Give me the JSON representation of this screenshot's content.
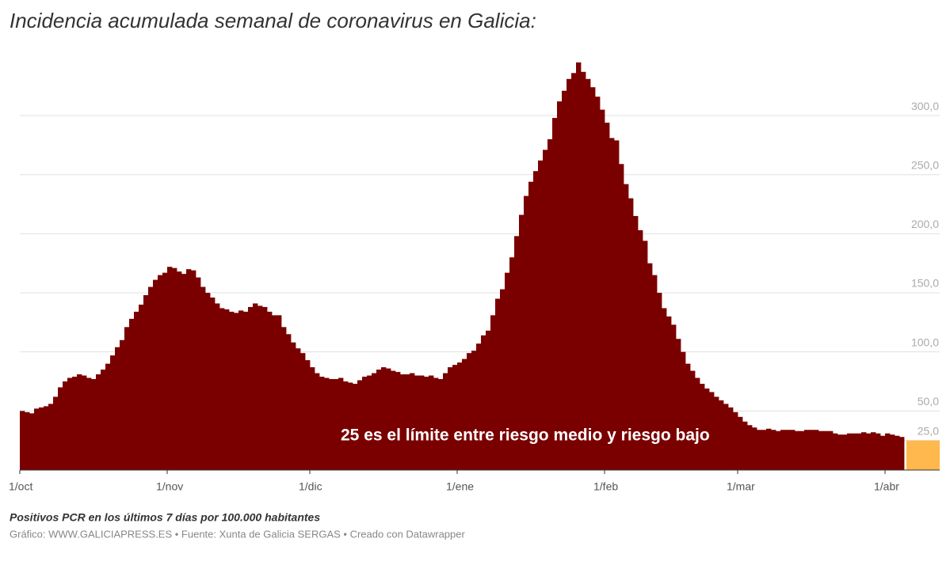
{
  "chart_data": {
    "type": "bar",
    "title": "Incidencia acumulada semanal de coronavirus en Galicia:",
    "note": "Positivos PCR en los últimos 7 días por 100.000 habitantes",
    "source": "Gráfico: WWW.GALICIAPRESS.ES • Fuente: Xunta de Galicia SERGAS • Creado con Datawrapper",
    "annotation": "25 es el límite entre riesgo medio y riesgo bajo",
    "color": "#7a0000",
    "highlight": {
      "value": 25,
      "color": "#ffb84d"
    },
    "ylim": [
      0,
      350
    ],
    "yticks": [
      {
        "value": 25,
        "label": "25,0"
      },
      {
        "value": 50,
        "label": "50,0"
      },
      {
        "value": 100,
        "label": "100,0"
      },
      {
        "value": 150,
        "label": "150,0"
      },
      {
        "value": 200,
        "label": "200,0"
      },
      {
        "value": 250,
        "label": "250,0"
      },
      {
        "value": 300,
        "label": "300,0"
      }
    ],
    "grid": true,
    "categories": [
      "1/oct",
      null,
      null,
      null,
      null,
      null,
      null,
      null,
      null,
      null,
      null,
      null,
      null,
      null,
      null,
      null,
      null,
      null,
      null,
      null,
      null,
      null,
      null,
      null,
      null,
      null,
      null,
      null,
      null,
      null,
      null,
      "1/nov",
      null,
      null,
      null,
      null,
      null,
      null,
      null,
      null,
      null,
      null,
      null,
      null,
      null,
      null,
      null,
      null,
      null,
      null,
      null,
      null,
      null,
      null,
      null,
      null,
      null,
      null,
      null,
      null,
      null,
      "1/dic",
      null,
      null,
      null,
      null,
      null,
      null,
      null,
      null,
      null,
      null,
      null,
      null,
      null,
      null,
      null,
      null,
      null,
      null,
      null,
      null,
      null,
      null,
      null,
      null,
      null,
      null,
      null,
      null,
      null,
      null,
      "1/ene",
      null,
      null,
      null,
      null,
      null,
      null,
      null,
      null,
      null,
      null,
      null,
      null,
      null,
      null,
      null,
      null,
      null,
      null,
      null,
      null,
      null,
      null,
      null,
      null,
      null,
      null,
      null,
      null,
      null,
      null,
      "1/feb",
      null,
      null,
      null,
      null,
      null,
      null,
      null,
      null,
      null,
      null,
      null,
      null,
      null,
      null,
      null,
      null,
      null,
      null,
      null,
      null,
      null,
      null,
      null,
      null,
      null,
      null,
      null,
      "1/mar",
      null,
      null,
      null,
      null,
      null,
      null,
      null,
      null,
      null,
      null,
      null,
      null,
      null,
      null,
      null,
      null,
      null,
      null,
      null,
      null,
      null,
      null,
      null,
      null,
      null,
      null,
      null,
      null,
      null,
      null,
      "1/abr",
      null,
      null,
      null
    ],
    "values": [
      50,
      49,
      48,
      52,
      53,
      54,
      56,
      62,
      70,
      75,
      78,
      79,
      81,
      80,
      78,
      77,
      81,
      85,
      90,
      97,
      104,
      110,
      121,
      128,
      134,
      140,
      148,
      155,
      161,
      165,
      167,
      172,
      171,
      168,
      166,
      170,
      169,
      163,
      155,
      150,
      146,
      141,
      137,
      136,
      134,
      133,
      135,
      134,
      138,
      141,
      139,
      138,
      134,
      131,
      131,
      121,
      115,
      108,
      103,
      99,
      93,
      87,
      82,
      79,
      78,
      77,
      77,
      78,
      75,
      74,
      73,
      76,
      79,
      80,
      82,
      85,
      87,
      86,
      84,
      83,
      81,
      81,
      82,
      80,
      80,
      79,
      80,
      78,
      77,
      82,
      87,
      89,
      91,
      94,
      99,
      101,
      107,
      114,
      118,
      131,
      145,
      153,
      167,
      180,
      198,
      216,
      232,
      244,
      253,
      262,
      271,
      280,
      298,
      312,
      321,
      331,
      336,
      345,
      337,
      331,
      324,
      316,
      305,
      294,
      281,
      279,
      259,
      242,
      230,
      215,
      203,
      194,
      175,
      165,
      150,
      137,
      130,
      123,
      111,
      100,
      90,
      84,
      78,
      73,
      69,
      66,
      62,
      59,
      56,
      53,
      49,
      45,
      41,
      38,
      36,
      34,
      34,
      35,
      34,
      33,
      34,
      34,
      34,
      33,
      33,
      34,
      34,
      34,
      33,
      33,
      33,
      31,
      30,
      30,
      31,
      31,
      31,
      32,
      31,
      32,
      31,
      29,
      31,
      30,
      29,
      28
    ]
  }
}
